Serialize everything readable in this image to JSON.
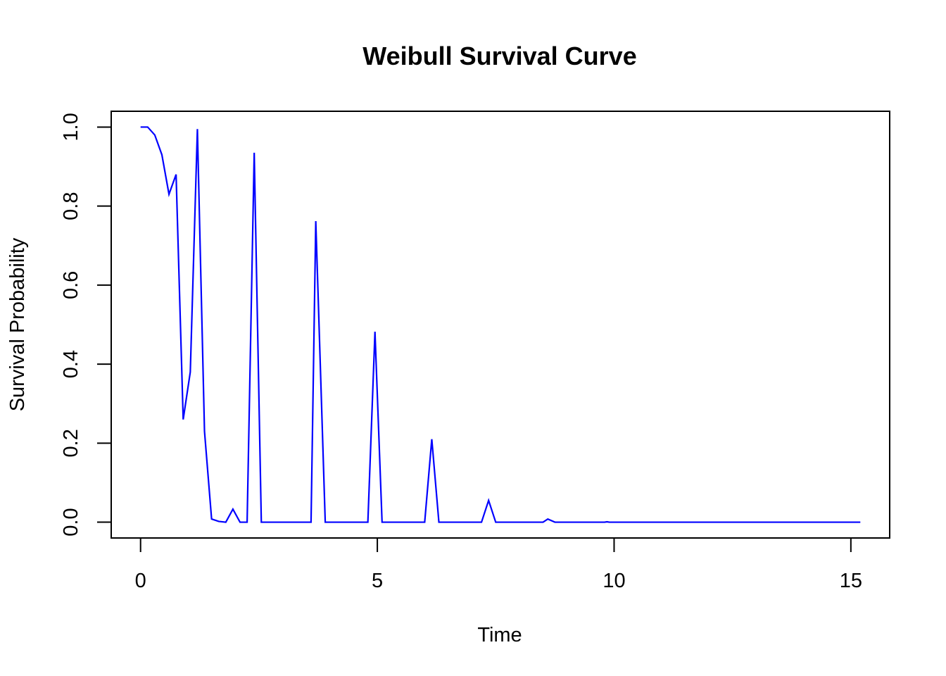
{
  "chart_data": {
    "type": "line",
    "title": "Weibull Survival Curve",
    "xlabel": "Time",
    "ylabel": "Survival Probability",
    "xlim": [
      -0.62,
      15.82
    ],
    "ylim": [
      -0.04,
      1.04
    ],
    "x_ticks": [
      0,
      5,
      10,
      15
    ],
    "y_ticks": [
      0.0,
      0.2,
      0.4,
      0.6,
      0.8,
      1.0
    ],
    "x_tick_labels": [
      "0",
      "5",
      "10",
      "15"
    ],
    "y_tick_labels": [
      "0.0",
      "0.2",
      "0.4",
      "0.6",
      "0.8",
      "1.0"
    ],
    "grid": false,
    "line_color": "#0000ff",
    "series": [
      {
        "x": [
          0.0,
          0.15,
          0.3,
          0.45,
          0.6,
          0.75,
          0.9,
          1.05,
          1.2,
          1.35,
          1.5,
          1.65,
          1.8,
          1.95,
          2.1,
          2.25,
          2.4,
          2.55,
          2.7,
          3.6,
          3.7,
          3.9,
          4.8,
          4.95,
          5.1,
          6.0,
          6.15,
          6.3,
          7.2,
          7.35,
          7.5,
          8.5,
          8.6,
          8.75,
          9.8,
          9.85,
          9.9,
          15.2
        ],
        "y": [
          1.0,
          1.0,
          0.98,
          0.93,
          0.83,
          0.88,
          0.26,
          0.38,
          0.995,
          0.23,
          0.008,
          0.002,
          0.0,
          0.033,
          0.0,
          0.0,
          0.935,
          0.0,
          0.0,
          0.0,
          0.762,
          0.0,
          0.0,
          0.482,
          0.0,
          0.0,
          0.21,
          0.0,
          0.0,
          0.055,
          0.0,
          0.0,
          0.008,
          0.0,
          0.0,
          0.001,
          0.0,
          0.0
        ]
      }
    ]
  }
}
